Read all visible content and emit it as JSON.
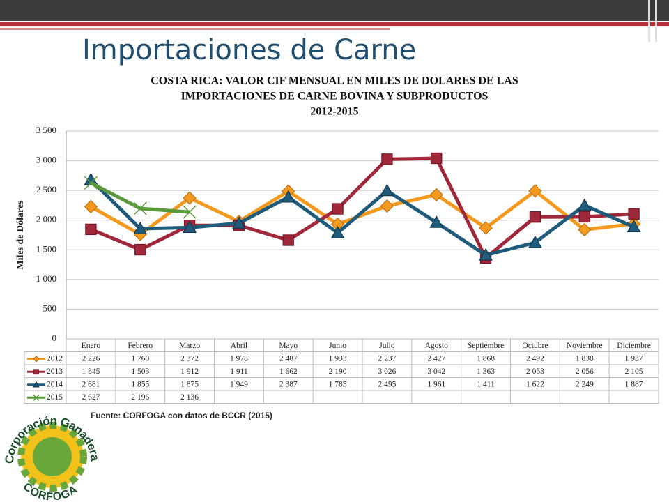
{
  "slide_title": "Importaciones de Carne",
  "source": "Fuente: CORFOGA con datos de BCCR (2015)",
  "logo": {
    "top": "Corporación Ganadera",
    "bottom": "CORFOGA"
  },
  "chart_data": {
    "type": "line",
    "title": [
      "COSTA RICA: VALOR CIF MENSUAL EN MILES DE DOLARES DE LAS",
      "IMPORTACIONES DE CARNE BOVINA Y SUBPRODUCTOS",
      "2012-2015"
    ],
    "y_label": "Miles de Dólares",
    "categories": [
      "Enero",
      "Febrero",
      "Marzo",
      "Abril",
      "Mayo",
      "Junio",
      "Julio",
      "Agosto",
      "Septiembre",
      "Octubre",
      "Noviembre",
      "Diciembre"
    ],
    "ylim": [
      0,
      3500
    ],
    "yticks": [
      0,
      500,
      {
        "value": 1000,
        "label": "1 000"
      },
      {
        "value": 1500,
        "label": "1 500"
      },
      {
        "value": 2000,
        "label": "2 000"
      },
      {
        "value": 2500,
        "label": "2 500"
      },
      {
        "value": 3000,
        "label": "3 000"
      },
      {
        "value": 3500,
        "label": "3 500"
      }
    ],
    "grid": true,
    "series": [
      {
        "name": "2012",
        "color": "#f39a1e",
        "marker": "diamond",
        "values": [
          2226,
          1760,
          2372,
          1978,
          2487,
          1933,
          2237,
          2427,
          1868,
          2492,
          1838,
          1937
        ],
        "value_labels": [
          "2 226",
          "1 760",
          "2 372",
          "1 978",
          "2 487",
          "1 933",
          "2 237",
          "2 427",
          "1 868",
          "2 492",
          "1 838",
          "1 937"
        ]
      },
      {
        "name": "2013",
        "color": "#a0283a",
        "marker": "square",
        "values": [
          1845,
          1503,
          1912,
          1911,
          1662,
          2190,
          3026,
          3042,
          1363,
          2053,
          2056,
          2105
        ],
        "value_labels": [
          "1 845",
          "1 503",
          "1 912",
          "1 911",
          "1 662",
          "2 190",
          "3 026",
          "3 042",
          "1 363",
          "2 053",
          "2 056",
          "2 105"
        ]
      },
      {
        "name": "2014",
        "color": "#1f5b7a",
        "marker": "triangle",
        "values": [
          2681,
          1855,
          1875,
          1949,
          2387,
          1785,
          2495,
          1961,
          1411,
          1622,
          2249,
          1887
        ],
        "value_labels": [
          "2 681",
          "1 855",
          "1 875",
          "1 949",
          "2 387",
          "1 785",
          "2 495",
          "1 961",
          "1 411",
          "1 622",
          "2 249",
          "1 887"
        ]
      },
      {
        "name": "2015",
        "color": "#5a9a3a",
        "marker": "x",
        "values": [
          2627,
          2196,
          2136,
          null,
          null,
          null,
          null,
          null,
          null,
          null,
          null,
          null
        ],
        "value_labels": [
          "2 627",
          "2 196",
          "2 136",
          null,
          null,
          null,
          null,
          null,
          null,
          null,
          null,
          null
        ]
      }
    ]
  }
}
